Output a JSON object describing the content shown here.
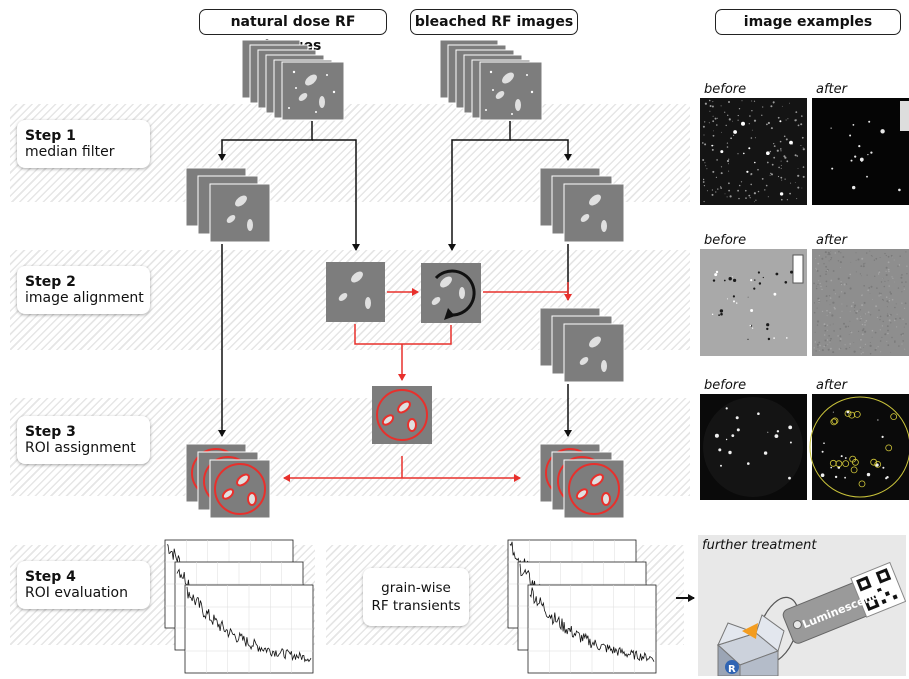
{
  "headers": {
    "natural": "natural dose RF images",
    "bleached": "bleached RF images",
    "examples": "image examples"
  },
  "steps": [
    {
      "number": "Step 1",
      "name": "median filter"
    },
    {
      "number": "Step 2",
      "name": "image alignment"
    },
    {
      "number": "Step 3",
      "name": "ROI assignment"
    },
    {
      "number": "Step 4",
      "name": "ROI evaluation"
    }
  ],
  "examples": {
    "before": "before",
    "after": "after"
  },
  "grainwise": {
    "line1": "grain-wise",
    "line2": "RF transients"
  },
  "further": {
    "title": "further treatment",
    "tag": "Luminescence",
    "r_logo": "R"
  },
  "colors": {
    "arrow_black": "#111111",
    "arrow_red": "#e8302c",
    "image_gray": "#7d7d7d",
    "roi_red": "#e8302c"
  }
}
